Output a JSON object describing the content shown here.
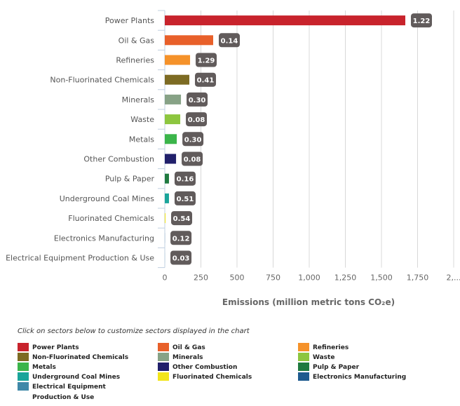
{
  "chart_data": {
    "type": "bar",
    "orientation": "horizontal",
    "title": "",
    "xlabel": "Emissions (million metric tons CO₂e)",
    "ylabel": "",
    "xlim": [
      0,
      2000
    ],
    "x_ticks": [
      "0",
      "250",
      "500",
      "750",
      "1,000",
      "1,250",
      "1,500",
      "1,750",
      "2,..."
    ],
    "x_tick_values": [
      0,
      250,
      500,
      750,
      1000,
      1250,
      1500,
      1750,
      2000
    ],
    "grid": true,
    "categories": [
      "Power Plants",
      "Oil & Gas",
      "Refineries",
      "Non-Fluorinated Chemicals",
      "Minerals",
      "Waste",
      "Metals",
      "Other Combustion",
      "Pulp & Paper",
      "Underground Coal Mines",
      "Fluorinated Chemicals",
      "Electronics Manufacturing",
      "Electrical Equipment Production & Use"
    ],
    "values": [
      1665,
      335,
      175,
      170,
      112,
      107,
      83,
      78,
      29,
      29,
      5,
      0.5,
      0.3
    ],
    "data_labels": [
      "1.22",
      "0.14",
      "1.29",
      "0.41",
      "0.30",
      "0.08",
      "0.30",
      "0.08",
      "0.16",
      "0.51",
      "0.54",
      "0.12",
      "0.03"
    ],
    "colors": [
      "#c8232c",
      "#e8602a",
      "#f5922a",
      "#7d6b23",
      "#87a286",
      "#8dc63f",
      "#3bb54a",
      "#21206b",
      "#1f7a3f",
      "#1aa59a",
      "#f2e51c",
      "#1f5b8f",
      "#3f88a8"
    ],
    "legend_position": "bottom"
  },
  "legend": {
    "note": "Click on sectors below to customize sectors displayed in the chart",
    "items": [
      {
        "label": "Power Plants",
        "color": "#c8232c"
      },
      {
        "label": "Oil & Gas",
        "color": "#e8602a"
      },
      {
        "label": "Refineries",
        "color": "#f5922a"
      },
      {
        "label": "Non-Fluorinated Chemicals",
        "color": "#7d6b23"
      },
      {
        "label": "Minerals",
        "color": "#87a286"
      },
      {
        "label": "Waste",
        "color": "#8dc63f"
      },
      {
        "label": "Metals",
        "color": "#3bb54a"
      },
      {
        "label": "Other Combustion",
        "color": "#21206b"
      },
      {
        "label": "Pulp & Paper",
        "color": "#1f7a3f"
      },
      {
        "label": "Underground Coal Mines",
        "color": "#1aa59a"
      },
      {
        "label": "Fluorinated Chemicals",
        "color": "#f2e51c"
      },
      {
        "label": "Electronics Manufacturing",
        "color": "#1f5b8f"
      },
      {
        "label": "Electrical Equipment",
        "label2": "Production & Use",
        "color": "#3f88a8"
      }
    ]
  }
}
